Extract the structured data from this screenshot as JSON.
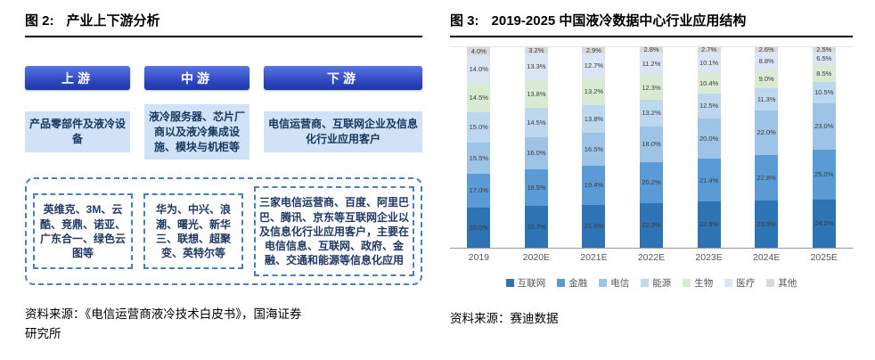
{
  "left_panel": {
    "fig_label": "图 2:",
    "title": "产业上下游分析",
    "columns": [
      {
        "header": "上游",
        "desc": "产品零部件及液冷设备",
        "companies": "英维克、3M、云酷、竞鼎、诺亚、广东合一、绿色云图等"
      },
      {
        "header": "中游",
        "desc": "液冷服务器、芯片厂商以及液冷集成设施、模块与机柜等",
        "companies": "华为、中兴、浪潮、曙光、新华三、联想、超聚变、英特尔等"
      },
      {
        "header": "下游",
        "desc": "电信运营商、互联网企业及信息化行业应用客户",
        "companies": "三家电信运营商、百度、阿里巴巴、腾讯、京东等互联网企业以及信息化行业应用客户，主要在电信信息、互联网、政府、金融、交通和能源等信息化应用"
      }
    ],
    "colors": {
      "header_blue": "#2b43bb",
      "desc_fill": "#cfe2f7",
      "dashed_border": "#4a7ec2",
      "box_text": "#1f3864"
    },
    "source_line1": "资料来源：《电信运营商液冷技术白皮书》，国海证券",
    "source_line2": "研究所"
  },
  "right_panel": {
    "fig_label": "图 3:",
    "title": "2019-2025 中国液冷数据中心行业应用结构",
    "source": "资料来源：赛迪数据"
  },
  "chart_data": {
    "type": "bar",
    "stacked": true,
    "title": "2019-2025 中国液冷数据中心行业应用结构",
    "categories": [
      "2019",
      "2020E",
      "2021E",
      "2022E",
      "2023E",
      "2024E",
      "2025E"
    ],
    "series": [
      {
        "name": "互联网",
        "color": "#2e74b5",
        "values": [
          20.0,
          20.7,
          21.5,
          22.3,
          22.9,
          23.5,
          24.0
        ]
      },
      {
        "name": "金融",
        "color": "#5b9bd5",
        "values": [
          17.0,
          18.5,
          19.4,
          20.2,
          21.4,
          22.8,
          25.0
        ]
      },
      {
        "name": "电信",
        "color": "#9dc3e6",
        "values": [
          15.5,
          16.0,
          16.5,
          18.0,
          20.0,
          22.0,
          23.0
        ]
      },
      {
        "name": "能源",
        "color": "#bdd7ee",
        "values": [
          15.0,
          14.5,
          13.8,
          13.2,
          12.5,
          11.3,
          10.5
        ]
      },
      {
        "name": "生物",
        "color": "#d9ead3",
        "values": [
          14.5,
          13.8,
          13.2,
          12.3,
          10.4,
          9.0,
          8.5
        ]
      },
      {
        "name": "医疗",
        "color": "#dbe4f3",
        "values": [
          14.0,
          13.3,
          12.7,
          11.2,
          10.1,
          8.8,
          6.5
        ]
      },
      {
        "name": "其他",
        "color": "#d9d9d9",
        "values": [
          4.0,
          3.2,
          2.9,
          2.8,
          2.7,
          2.6,
          2.5
        ]
      }
    ],
    "unit": "%",
    "ylim": [
      0,
      100
    ],
    "grid": false,
    "legend_position": "bottom",
    "data_labels": true
  }
}
